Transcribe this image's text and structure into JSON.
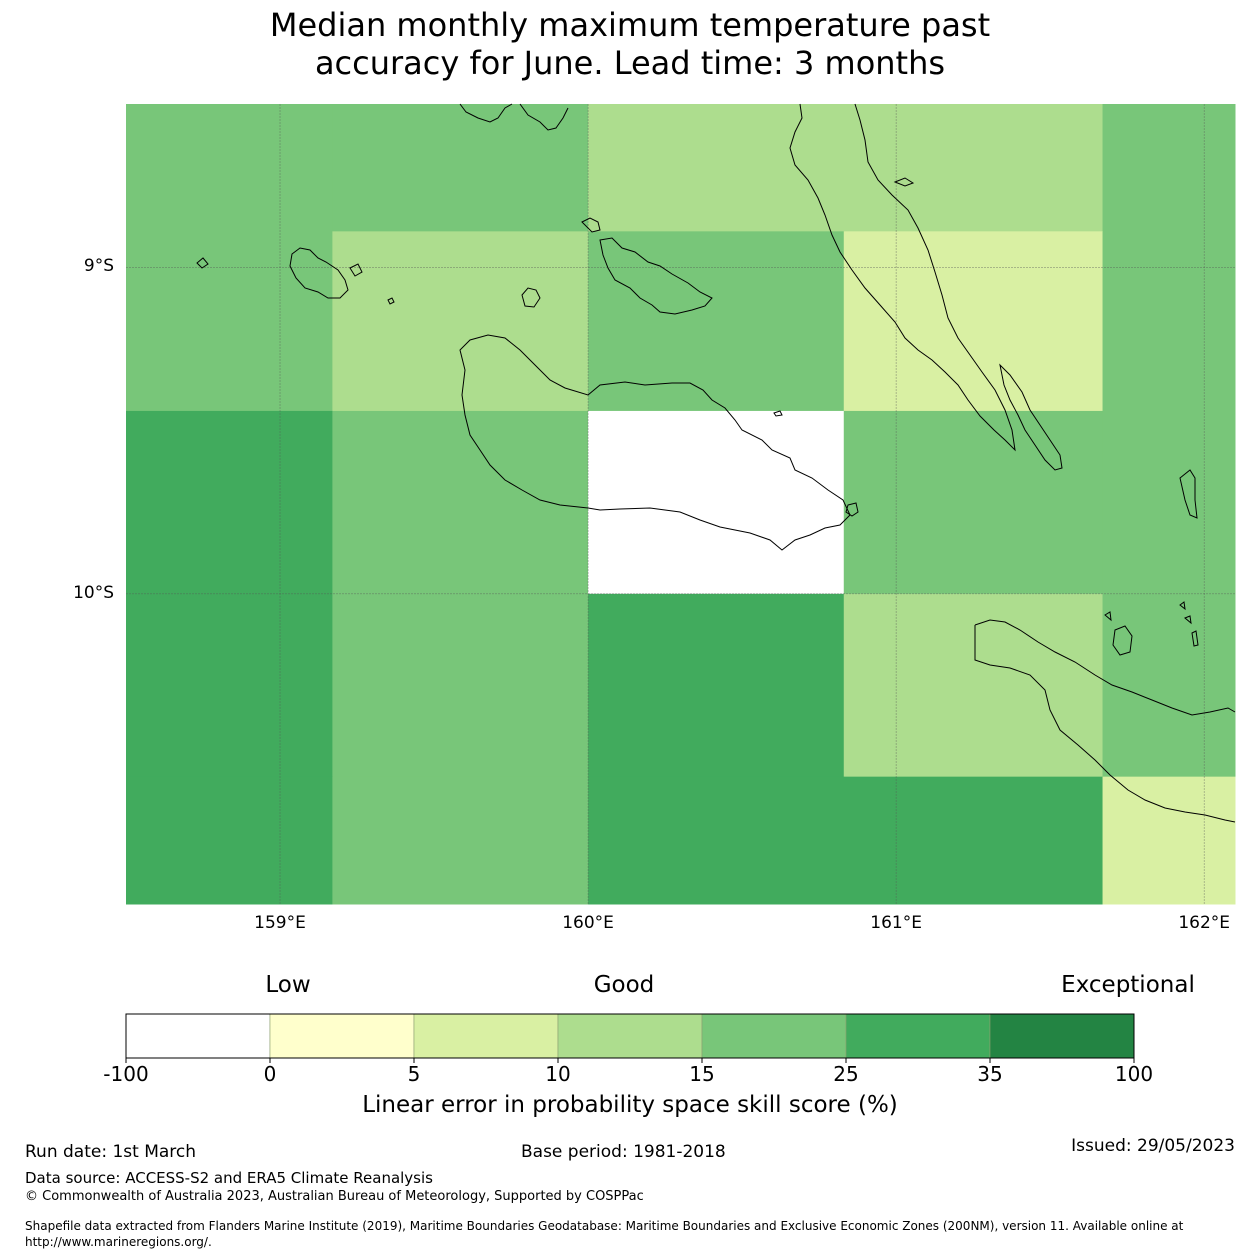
{
  "title": {
    "line1": "Median monthly maximum temperature past",
    "line2": "accuracy for June. Lead time: 3 months"
  },
  "map": {
    "lon_range": [
      158.5,
      162.1
    ],
    "lat_range": [
      -10.95,
      -8.5
    ],
    "lat_ticks": [
      {
        "value": -9,
        "label": "9°S"
      },
      {
        "value": -10,
        "label": "10°S"
      }
    ],
    "lon_ticks": [
      {
        "value": 159,
        "label": "159°E"
      },
      {
        "value": 160,
        "label": "160°E"
      },
      {
        "value": 161,
        "label": "161°E"
      },
      {
        "value": 162,
        "label": "162°E"
      }
    ],
    "grid_columns_lon": [
      158.5,
      159.17,
      160.0,
      160.83,
      161.67,
      162.1
    ],
    "grid_rows_lat": [
      -8.5,
      -8.89,
      -9.44,
      -10.0,
      -10.56,
      -10.95
    ],
    "cells": [
      [
        "15-25",
        "15-25",
        "10-15",
        "10-15",
        "15-25"
      ],
      [
        "15-25",
        "10-15",
        "15-25",
        "5-10",
        "15-25"
      ],
      [
        "25-35",
        "15-25",
        "-100-0",
        "15-25",
        "15-25"
      ],
      [
        "25-35",
        "15-25",
        "25-35",
        "10-15",
        "15-25"
      ],
      [
        "25-35",
        "15-25",
        "25-35",
        "25-35",
        "5-10"
      ]
    ]
  },
  "legend": {
    "words": {
      "low": "Low",
      "good": "Good",
      "exceptional": "Exceptional"
    },
    "bins": [
      {
        "key": "-100-0",
        "color": "#ffffff"
      },
      {
        "key": "0-5",
        "color": "#ffffcc"
      },
      {
        "key": "5-10",
        "color": "#d9f0a3"
      },
      {
        "key": "10-15",
        "color": "#addd8e"
      },
      {
        "key": "15-25",
        "color": "#78c679"
      },
      {
        "key": "25-35",
        "color": "#41ab5d"
      },
      {
        "key": "35-100",
        "color": "#238443"
      }
    ],
    "ticks": [
      "-100",
      "0",
      "5",
      "10",
      "15",
      "25",
      "35",
      "100"
    ],
    "label": "Linear error in probability space skill score (%)"
  },
  "footer": {
    "run_date": "Run date: 1st March",
    "base_period": "Base period: 1981-2018",
    "issued": "Issued: 29/05/2023",
    "data_source": "Data source: ACCESS-S2 and ERA5 Climate Reanalysis",
    "copyright": "© Commonwealth of Australia 2023, Australian Bureau of Meteorology, Supported by COSPPac",
    "shapefile_line1": "Shapefile data extracted from Flanders Marine Institute (2019), Maritime Boundaries Geodatabase: Maritime Boundaries and Exclusive Economic Zones (200NM), version 11. Available online at",
    "shapefile_line2": "http://www.marineregions.org/."
  }
}
